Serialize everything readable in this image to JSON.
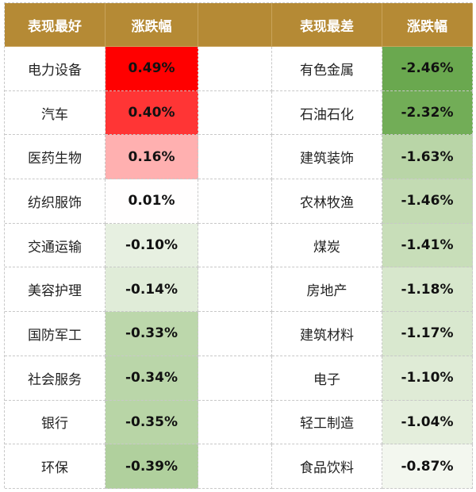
{
  "header": {
    "best_label": "表现最好",
    "best_change_label": "涨跌幅",
    "worst_label": "表现最差",
    "worst_change_label": "涨跌幅",
    "header_color": "#b58a35"
  },
  "best": [
    {
      "name": "电力设备",
      "change": "0.49%",
      "color": "#ff0000"
    },
    {
      "name": "汽车",
      "change": "0.40%",
      "color": "#ff3535"
    },
    {
      "name": "医药生物",
      "change": "0.16%",
      "color": "#ffb0b0"
    },
    {
      "name": "纺织服饰",
      "change": "0.01%",
      "color": "#fffefe"
    },
    {
      "name": "交通运输",
      "change": "-0.10%",
      "color": "#e7f0e1"
    },
    {
      "name": "美容护理",
      "change": "-0.14%",
      "color": "#e0ecd8"
    },
    {
      "name": "国防军工",
      "change": "-0.33%",
      "color": "#bcd7ab"
    },
    {
      "name": "社会服务",
      "change": "-0.34%",
      "color": "#bad6a9"
    },
    {
      "name": "银行",
      "change": "-0.35%",
      "color": "#b8d5a6"
    },
    {
      "name": "环保",
      "change": "-0.39%",
      "color": "#b0d09d"
    }
  ],
  "worst": [
    {
      "name": "有色金属",
      "change": "-2.46%",
      "color": "#6aa84f"
    },
    {
      "name": "石油石化",
      "change": "-2.32%",
      "color": "#72ad57"
    },
    {
      "name": "建筑装饰",
      "change": "-1.63%",
      "color": "#b9d5a7"
    },
    {
      "name": "农林牧渔",
      "change": "-1.46%",
      "color": "#c3dbb3"
    },
    {
      "name": "煤炭",
      "change": "-1.41%",
      "color": "#c8deb9"
    },
    {
      "name": "房地产",
      "change": "-1.18%",
      "color": "#d7e7cc"
    },
    {
      "name": "建筑材料",
      "change": "-1.17%",
      "color": "#d9e8cf"
    },
    {
      "name": "电子",
      "change": "-1.10%",
      "color": "#dfebd6"
    },
    {
      "name": "轻工制造",
      "change": "-1.04%",
      "color": "#e4eedc"
    },
    {
      "name": "食品饮料",
      "change": "-0.87%",
      "color": "#f3f7ef"
    }
  ]
}
